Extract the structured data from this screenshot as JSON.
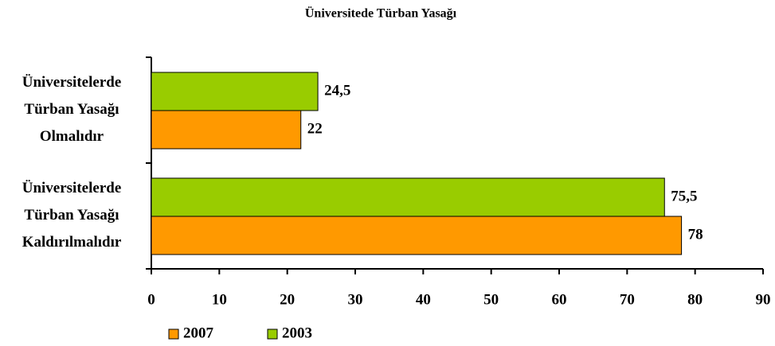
{
  "chart_data": {
    "type": "bar",
    "orientation": "horizontal",
    "title": "Üniversitede Türban Yasağı",
    "categories": [
      [
        "Üniversitelerde",
        "Türban Yasağı",
        "Olmalıdır"
      ],
      [
        "Üniversitelerde",
        "Türban Yasağı",
        "Kaldırılmalıdır"
      ]
    ],
    "series": [
      {
        "name": "2007",
        "color": "#ff9900",
        "values": [
          22,
          78
        ],
        "value_labels": [
          "22",
          "78"
        ]
      },
      {
        "name": "2003",
        "color": "#99cc00",
        "values": [
          24.5,
          75.5
        ],
        "value_labels": [
          "24,5",
          "75,5"
        ]
      }
    ],
    "xlim": [
      0,
      90
    ],
    "xticks": [
      0,
      10,
      20,
      30,
      40,
      50,
      60,
      70,
      80,
      90
    ],
    "legend": "bottom",
    "grid": false
  }
}
